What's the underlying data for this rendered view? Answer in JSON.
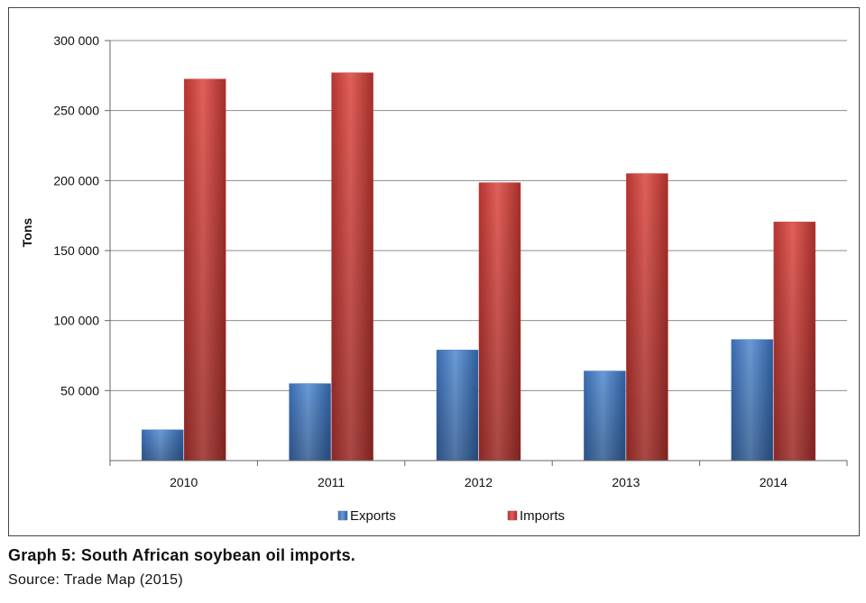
{
  "caption": {
    "title": "Graph 5: South African soybean oil imports.",
    "source": "Source: Trade Map (2015)"
  },
  "chart_data": {
    "type": "bar",
    "categories": [
      "2010",
      "2011",
      "2012",
      "2013",
      "2014"
    ],
    "series": [
      {
        "name": "Exports",
        "color": "#4a7ec0",
        "values": [
          22000,
          55000,
          79000,
          64000,
          86500
        ]
      },
      {
        "name": "Imports",
        "color": "#c8413d",
        "values": [
          272500,
          277000,
          198500,
          205000,
          170500
        ]
      }
    ],
    "title": "",
    "xlabel": "",
    "ylabel": "Tons",
    "ylim": [
      0,
      300000
    ],
    "yticks": [
      {
        "value": 50000,
        "label": "50 000"
      },
      {
        "value": 100000,
        "label": "100 000"
      },
      {
        "value": 150000,
        "label": "150 000"
      },
      {
        "value": 200000,
        "label": "200 000"
      },
      {
        "value": 250000,
        "label": "250 000"
      },
      {
        "value": 300000,
        "label": "300 000"
      }
    ],
    "grid": true,
    "legend_position": "bottom"
  }
}
